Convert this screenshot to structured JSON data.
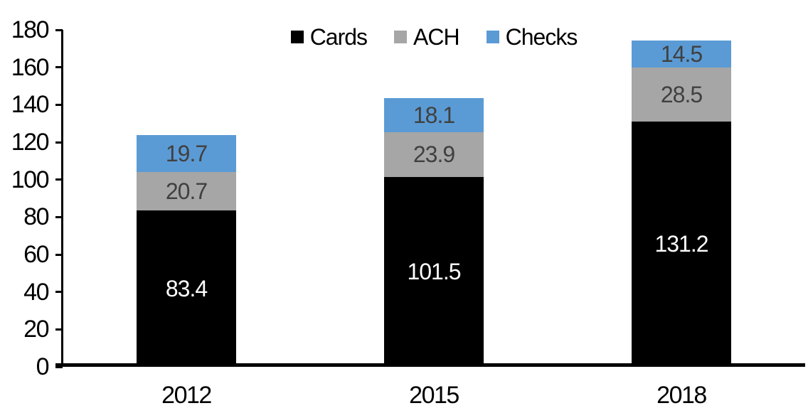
{
  "chart_data": {
    "type": "bar",
    "stacked": true,
    "title": "",
    "xlabel": "",
    "ylabel": "",
    "categories": [
      "2012",
      "2015",
      "2018"
    ],
    "series": [
      {
        "name": "Cards",
        "color": "#000000",
        "label_color": "#ffffff",
        "values": [
          83.4,
          101.5,
          131.2
        ]
      },
      {
        "name": "ACH",
        "color": "#a6a6a6",
        "label_color": "#404040",
        "values": [
          20.7,
          23.9,
          28.5
        ]
      },
      {
        "name": "Checks",
        "color": "#5b9bd5",
        "label_color": "#404040",
        "values": [
          19.7,
          18.1,
          14.5
        ]
      }
    ],
    "ylim": [
      0,
      180
    ],
    "ytick_step": 20,
    "ytick_labels": [
      "0",
      "20",
      "40",
      "60",
      "80",
      "100",
      "120",
      "140",
      "160",
      "180"
    ],
    "legend_position": "top-center",
    "grid": false,
    "axis_color": "#000000",
    "background_color": "#ffffff"
  }
}
